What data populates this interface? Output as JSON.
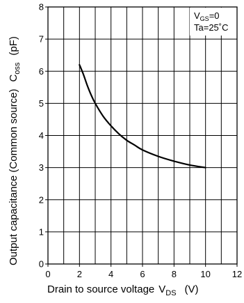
{
  "chart_data": {
    "type": "line",
    "xlabel": {
      "text": "Drain to source voltage",
      "symbol": "V",
      "subscript": "DS",
      "unit": "(V)"
    },
    "ylabel": {
      "text": "Output capacitance (Common source)",
      "symbol": "C",
      "subscript": "oss",
      "unit": "(pF)"
    },
    "xlim": [
      0,
      12
    ],
    "ylim": [
      0,
      8
    ],
    "x_ticks": [
      0,
      2,
      4,
      6,
      8,
      10,
      12
    ],
    "y_ticks": [
      0,
      1,
      2,
      3,
      4,
      5,
      6,
      7,
      8
    ],
    "x_tick_labels": [
      "0",
      "2",
      "4",
      "6",
      "8",
      "10",
      "12"
    ],
    "y_tick_labels": [
      "0",
      "1",
      "2",
      "3",
      "4",
      "5",
      "6",
      "7",
      "8"
    ],
    "x_minor_step": 1,
    "grid": true,
    "conditions": {
      "line1": {
        "symbol": "V",
        "subscript": "GS",
        "value": "=0"
      },
      "line2": "Ta=25˚C"
    },
    "series": [
      {
        "x": [
          2.0,
          2.25,
          2.5,
          2.75,
          3.0,
          3.5,
          4.0,
          4.5,
          5.0,
          5.5,
          6.0,
          7.0,
          8.0,
          9.0,
          10.0
        ],
        "y": [
          6.2,
          5.9,
          5.55,
          5.25,
          5.0,
          4.6,
          4.3,
          4.05,
          3.85,
          3.7,
          3.55,
          3.35,
          3.2,
          3.08,
          3.0
        ]
      }
    ]
  }
}
